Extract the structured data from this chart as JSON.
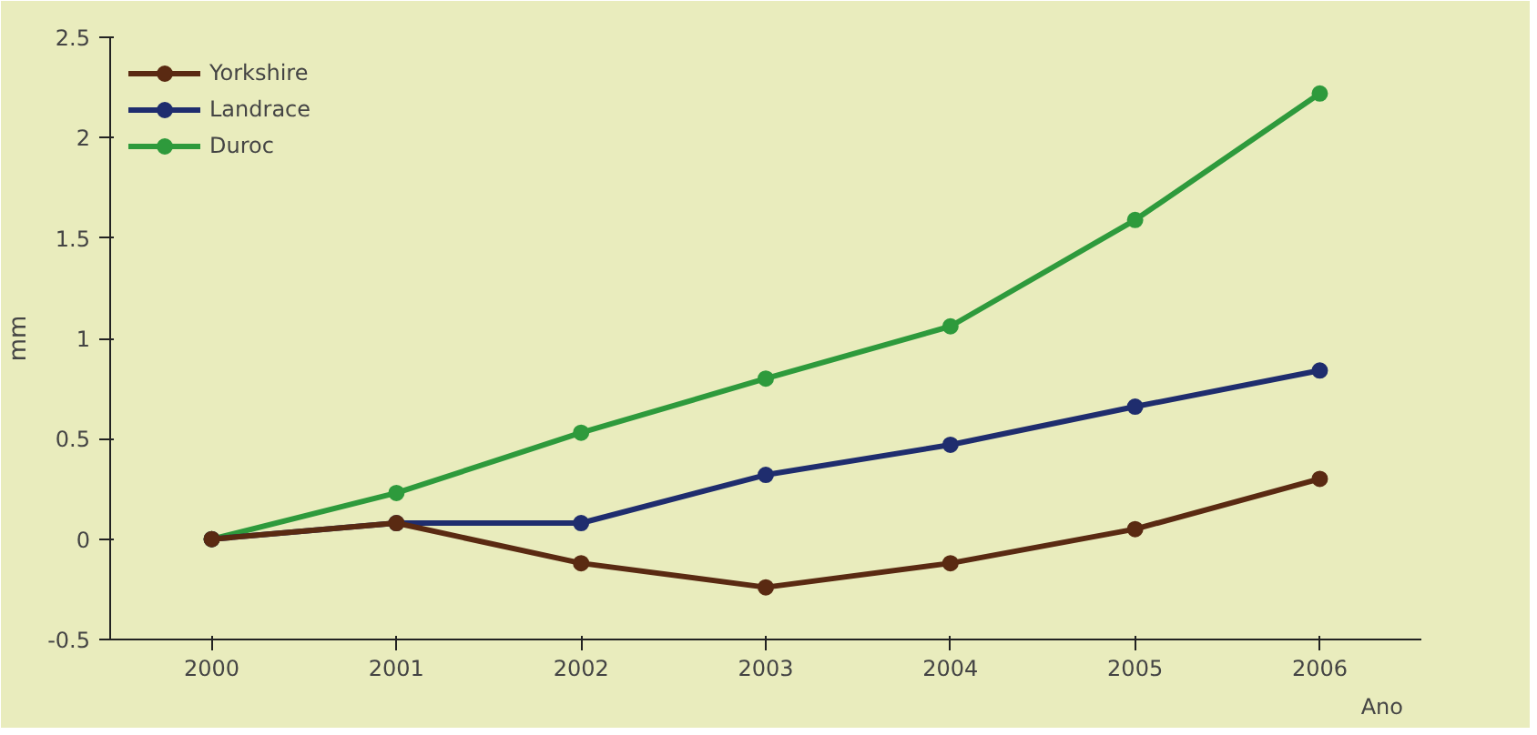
{
  "chart_data": {
    "type": "line",
    "xlabel": "Ano",
    "ylabel": "mm",
    "categories": [
      "2000",
      "2001",
      "2002",
      "2003",
      "2004",
      "2005",
      "2006"
    ],
    "series": [
      {
        "name": "Yorkshire",
        "color": "#5a2a12",
        "values": [
          0,
          0.08,
          -0.12,
          -0.24,
          -0.12,
          0.05,
          0.3
        ]
      },
      {
        "name": "Landrace",
        "color": "#1f2d6e",
        "values": [
          0,
          0.08,
          0.08,
          0.32,
          0.47,
          0.66,
          0.84
        ]
      },
      {
        "name": "Duroc",
        "color": "#2e9a3c",
        "values": [
          0,
          0.23,
          0.53,
          0.8,
          1.06,
          1.59,
          2.22
        ]
      }
    ],
    "ylim": [
      -0.5,
      2.5
    ],
    "yticks": [
      -0.5,
      0,
      0.5,
      1,
      1.5,
      2,
      2.5
    ],
    "grid": false,
    "legend": "top left",
    "marker": "circle",
    "line_style": "solid"
  }
}
